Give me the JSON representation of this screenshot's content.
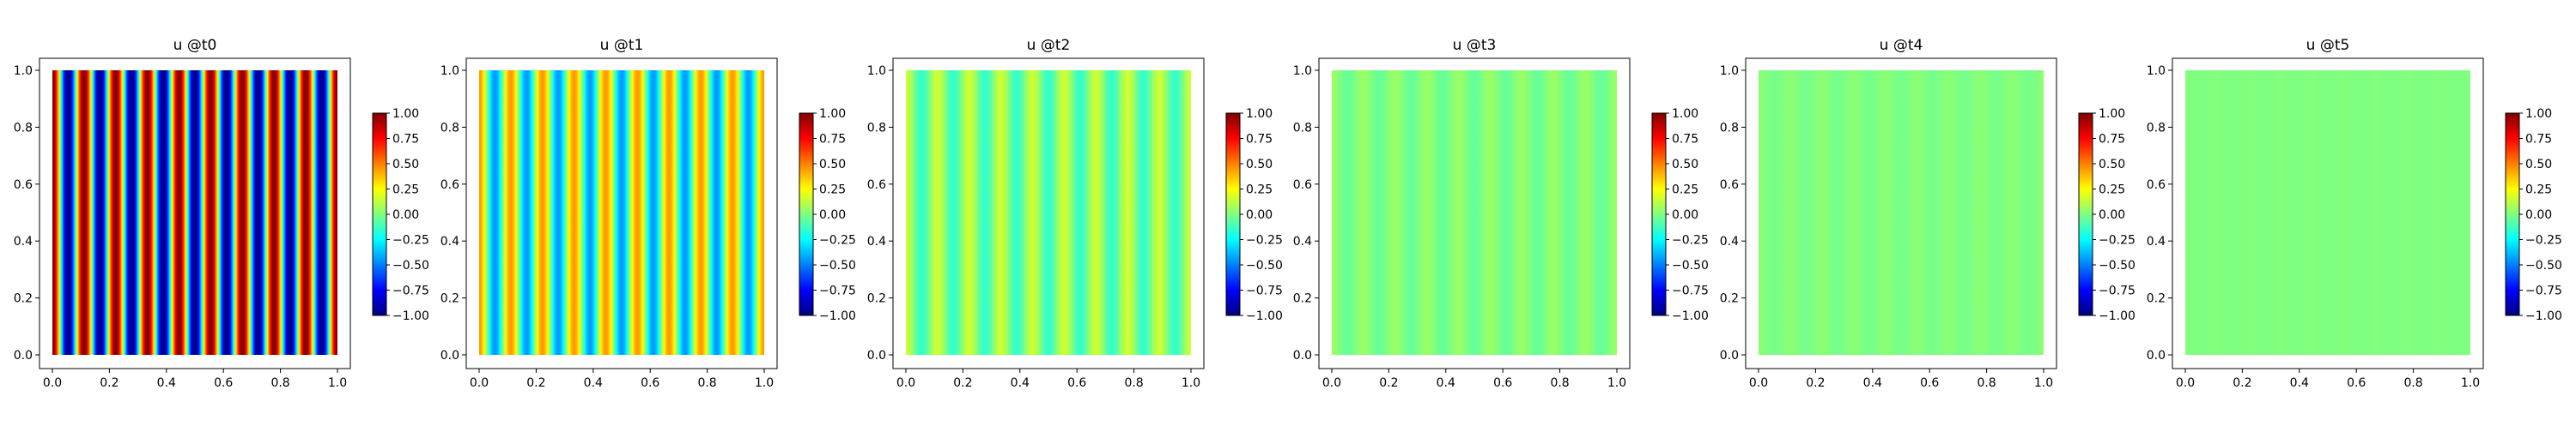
{
  "figure": {
    "background": "#ffffff"
  },
  "chart_data": [
    {
      "type": "heatmap",
      "title": "u @t0",
      "amplitude": 1.0,
      "field": "u = A·cos(2π·k·x)",
      "stripes": 9,
      "xlim": [
        0,
        1
      ],
      "ylim": [
        0,
        1
      ],
      "xticks": [
        "0.0",
        "0.2",
        "0.4",
        "0.6",
        "0.8",
        "1.0"
      ],
      "yticks": [
        "0.0",
        "0.2",
        "0.4",
        "0.6",
        "0.8",
        "1.0"
      ],
      "colorbar": {
        "colormap": "jet",
        "range": [
          -1,
          1
        ],
        "ticks": [
          "1.00",
          "0.75",
          "0.50",
          "0.25",
          "0.00",
          "−0.25",
          "−0.50",
          "−0.75",
          "−1.00"
        ]
      }
    },
    {
      "type": "heatmap",
      "title": "u @t1",
      "amplitude": 0.45,
      "field": "u = A·cos(2π·k·x)",
      "stripes": 9,
      "xlim": [
        0,
        1
      ],
      "ylim": [
        0,
        1
      ],
      "xticks": [
        "0.0",
        "0.2",
        "0.4",
        "0.6",
        "0.8",
        "1.0"
      ],
      "yticks": [
        "0.0",
        "0.2",
        "0.4",
        "0.6",
        "0.8",
        "1.0"
      ],
      "colorbar": {
        "colormap": "jet",
        "range": [
          -1,
          1
        ],
        "ticks": [
          "1.00",
          "0.75",
          "0.50",
          "0.25",
          "0.00",
          "−0.25",
          "−0.50",
          "−0.75",
          "−1.00"
        ]
      }
    },
    {
      "type": "heatmap",
      "title": "u @t2",
      "amplitude": 0.15,
      "field": "u = A·cos(2π·k·x)",
      "stripes": 9,
      "xlim": [
        0,
        1
      ],
      "ylim": [
        0,
        1
      ],
      "xticks": [
        "0.0",
        "0.2",
        "0.4",
        "0.6",
        "0.8",
        "1.0"
      ],
      "yticks": [
        "0.0",
        "0.2",
        "0.4",
        "0.6",
        "0.8",
        "1.0"
      ],
      "colorbar": {
        "colormap": "jet",
        "range": [
          -1,
          1
        ],
        "ticks": [
          "1.00",
          "0.75",
          "0.50",
          "0.25",
          "0.00",
          "−0.25",
          "−0.50",
          "−0.75",
          "−1.00"
        ]
      }
    },
    {
      "type": "heatmap",
      "title": "u @t3",
      "amplitude": 0.05,
      "field": "u = A·cos(2π·k·x)",
      "stripes": 9,
      "xlim": [
        0,
        1
      ],
      "ylim": [
        0,
        1
      ],
      "xticks": [
        "0.0",
        "0.2",
        "0.4",
        "0.6",
        "0.8",
        "1.0"
      ],
      "yticks": [
        "0.0",
        "0.2",
        "0.4",
        "0.6",
        "0.8",
        "1.0"
      ],
      "colorbar": {
        "colormap": "jet",
        "range": [
          -1,
          1
        ],
        "ticks": [
          "1.00",
          "0.75",
          "0.50",
          "0.25",
          "0.00",
          "−0.25",
          "−0.50",
          "−0.75",
          "−1.00"
        ]
      }
    },
    {
      "type": "heatmap",
      "title": "u @t4",
      "amplitude": 0.02,
      "field": "u = A·cos(2π·k·x)",
      "stripes": 9,
      "xlim": [
        0,
        1
      ],
      "ylim": [
        0,
        1
      ],
      "xticks": [
        "0.0",
        "0.2",
        "0.4",
        "0.6",
        "0.8",
        "1.0"
      ],
      "yticks": [
        "0.0",
        "0.2",
        "0.4",
        "0.6",
        "0.8",
        "1.0"
      ],
      "colorbar": {
        "colormap": "jet",
        "range": [
          -1,
          1
        ],
        "ticks": [
          "1.00",
          "0.75",
          "0.50",
          "0.25",
          "0.00",
          "−0.25",
          "−0.50",
          "−0.75",
          "−1.00"
        ]
      }
    },
    {
      "type": "heatmap",
      "title": "u @t5",
      "amplitude": 0.005,
      "field": "u = A·cos(2π·k·x)",
      "stripes": 9,
      "xlim": [
        0,
        1
      ],
      "ylim": [
        0,
        1
      ],
      "xticks": [
        "0.0",
        "0.2",
        "0.4",
        "0.6",
        "0.8",
        "1.0"
      ],
      "yticks": [
        "0.0",
        "0.2",
        "0.4",
        "0.6",
        "0.8",
        "1.0"
      ],
      "colorbar": {
        "colormap": "jet",
        "range": [
          -1,
          1
        ],
        "ticks": [
          "1.00",
          "0.75",
          "0.50",
          "0.25",
          "0.00",
          "−0.25",
          "−0.50",
          "−0.75",
          "−1.00"
        ]
      }
    }
  ]
}
